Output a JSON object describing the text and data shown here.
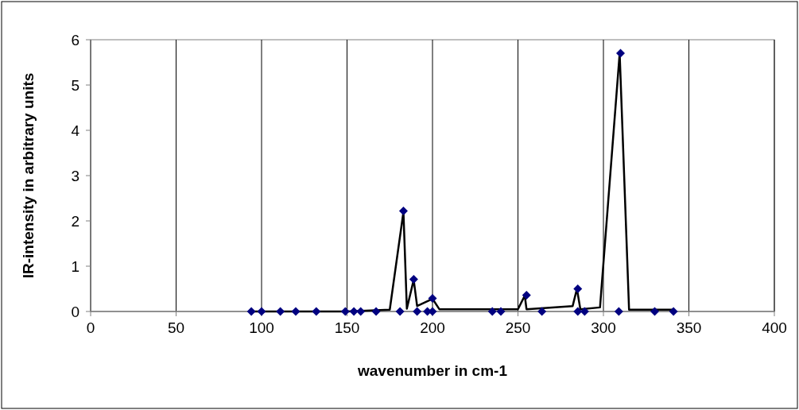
{
  "chart_data": {
    "type": "scatter",
    "xlabel": "wavenumber in cm-1",
    "ylabel": "IR-intensity in arbitrary units",
    "xlim": [
      0,
      400
    ],
    "xticks": [
      0,
      50,
      100,
      150,
      200,
      250,
      300,
      350,
      400
    ],
    "ylim": [
      0,
      6
    ],
    "yticks": [
      0,
      1,
      2,
      3,
      4,
      5,
      6
    ],
    "grid": "x",
    "series": [
      {
        "type": "line",
        "color": "#000000",
        "marker": "none",
        "line_style": "solid",
        "x": [
          94,
          150,
          175,
          183,
          185,
          189,
          191,
          200,
          204,
          250,
          254,
          255,
          282,
          284.5,
          286.5,
          298,
          309.5,
          315,
          341
        ],
        "values": [
          0,
          0,
          0.04,
          2.2,
          0.06,
          0.7,
          0.12,
          0.28,
          0.05,
          0.05,
          0.35,
          0.05,
          0.12,
          0.5,
          0.05,
          0.09,
          5.7,
          0.04,
          0.04
        ]
      },
      {
        "color": "#000080",
        "marker": "diamond",
        "x": [
          94,
          100,
          111,
          120,
          132,
          149,
          154,
          158,
          167,
          181,
          183,
          189,
          191,
          197,
          200,
          200,
          235,
          240,
          255,
          264,
          285,
          285,
          289,
          309,
          310,
          330,
          341
        ],
        "values": [
          0,
          0,
          0,
          0,
          0,
          0,
          0,
          0,
          0,
          0,
          2.22,
          0.71,
          0,
          0,
          0,
          0.29,
          0,
          0,
          0.36,
          0,
          0.5,
          0,
          0,
          0,
          5.7,
          0,
          0
        ]
      }
    ]
  }
}
